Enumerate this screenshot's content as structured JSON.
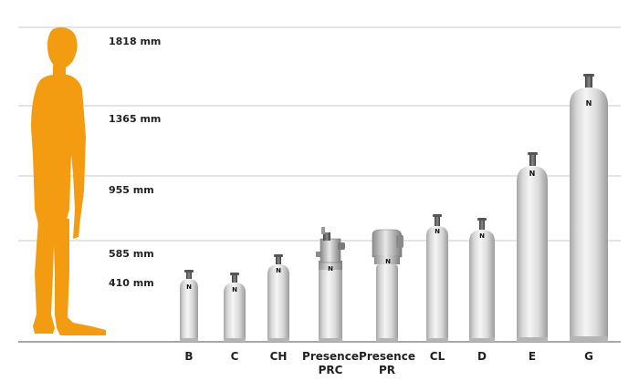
{
  "height_markers": [
    {
      "label": "1818 mm"
    },
    {
      "label": "1365 mm"
    },
    {
      "label": "955 mm"
    },
    {
      "label": "585 mm"
    },
    {
      "label": "410 mm"
    }
  ],
  "cylinders": [
    {
      "label": "B",
      "label2": "",
      "valve": "standard",
      "badge": "N"
    },
    {
      "label": "C",
      "label2": "",
      "valve": "standard",
      "badge": "N"
    },
    {
      "label": "CH",
      "label2": "",
      "valve": "standard",
      "badge": "N"
    },
    {
      "label": "Presence",
      "label2": "PRC",
      "valve": "presence-prc",
      "badge": "N"
    },
    {
      "label": "Presence",
      "label2": "PR",
      "valve": "presence-pr",
      "badge": "N"
    },
    {
      "label": "CL",
      "label2": "",
      "valve": "standard",
      "badge": "N"
    },
    {
      "label": "D",
      "label2": "",
      "valve": "standard",
      "badge": "N"
    },
    {
      "label": "E",
      "label2": "",
      "valve": "standard",
      "badge": "N"
    },
    {
      "label": "G",
      "label2": "",
      "valve": "standard",
      "badge": "N"
    }
  ],
  "colors": {
    "person": "#F39C12",
    "cylinder_body": "#E2E2E2",
    "cylinder_shade": "#A8A8A8",
    "valve": "#555555",
    "gridline": "#C9C9C9",
    "baseline": "#8A8A8A"
  },
  "icons": {
    "person": "standing-man-silhouette-icon",
    "cylinder": "gas-cylinder-icon"
  }
}
